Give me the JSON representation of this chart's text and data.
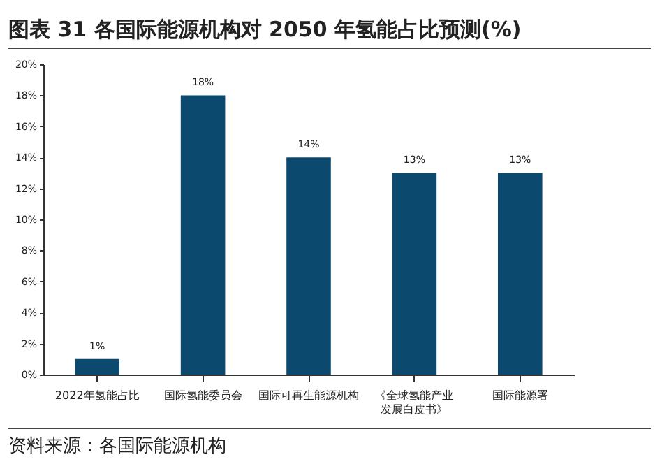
{
  "chart_data": {
    "type": "bar",
    "title": "图表 31 各国际能源机构对 2050 年氢能占比预测(%)",
    "categories": [
      "2022年氢能占比",
      "国际氢能委员会",
      "国际可再生能源机构",
      "《全球氢能产业发展白皮书》",
      "国际能源署"
    ],
    "values": [
      1,
      18,
      14,
      13,
      13
    ],
    "value_labels": [
      "1%",
      "18%",
      "14%",
      "13%",
      "13%"
    ],
    "color": "#0b4a6e",
    "ylim": [
      0,
      20
    ],
    "yticks": [
      {
        "value": 0,
        "label": "0%"
      },
      {
        "value": 2,
        "label": "2%"
      },
      {
        "value": 4,
        "label": "4%"
      },
      {
        "value": 6,
        "label": "6%"
      },
      {
        "value": 8,
        "label": "8%"
      },
      {
        "value": 10,
        "label": "10%"
      },
      {
        "value": 12,
        "label": "12%"
      },
      {
        "value": 14,
        "label": "14%"
      },
      {
        "value": 16,
        "label": "16%"
      },
      {
        "value": 18,
        "label": "18%"
      },
      {
        "value": 20,
        "label": "20%"
      }
    ],
    "grid": false,
    "annotations": [
      "资料来源：各国际能源机构"
    ]
  }
}
